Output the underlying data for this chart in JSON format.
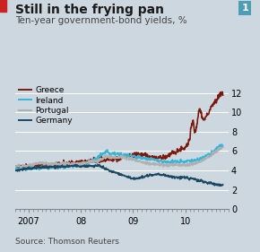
{
  "title": "Still in the frying pan",
  "subtitle": "Ten-year government-bond yields, %",
  "source": "Source: Thomson Reuters",
  "figure_number": "1",
  "background_color": "#ccd7df",
  "plot_background_color": "#ccd7df",
  "ylim": [
    0,
    13
  ],
  "yticks": [
    0,
    2,
    4,
    6,
    8,
    10,
    12
  ],
  "xlim_start": 2006.75,
  "xlim_end": 2010.75,
  "xtick_labels": [
    "2007",
    "08",
    "09",
    "10"
  ],
  "xtick_positions": [
    2007.0,
    2008.0,
    2009.0,
    2010.0
  ],
  "series": {
    "Greece": {
      "color": "#7b1a0c",
      "linewidth": 1.2
    },
    "Ireland": {
      "color": "#37b5d9",
      "linewidth": 1.2
    },
    "Portugal": {
      "color": "#b0b0b0",
      "linewidth": 1.2
    },
    "Germany": {
      "color": "#1a4860",
      "linewidth": 1.2
    }
  },
  "legend_order": [
    "Greece",
    "Ireland",
    "Portugal",
    "Germany"
  ],
  "title_fontsize": 10,
  "subtitle_fontsize": 7.5,
  "tick_fontsize": 7,
  "source_fontsize": 6.5,
  "red_bar_color": "#cc2222",
  "fig_num_bg": "#4d9db5",
  "grid_color": "#ffffff",
  "spine_color": "#888888"
}
